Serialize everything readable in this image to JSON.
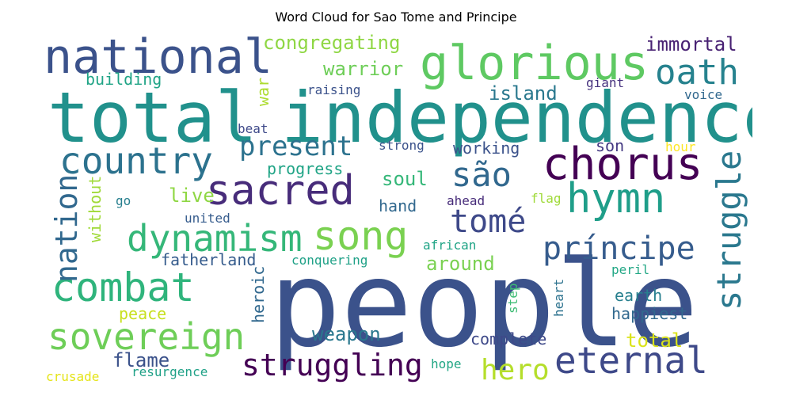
{
  "title": "Word Cloud for Sao Tome and Principe",
  "words": [
    {
      "text": "people",
      "color": "#3b528b"
    },
    {
      "text": "total",
      "color": "#21918c"
    },
    {
      "text": "independence",
      "color": "#21918c"
    },
    {
      "text": "national",
      "color": "#3b528b"
    },
    {
      "text": "glorious",
      "color": "#5ec962"
    },
    {
      "text": "chorus",
      "color": "#440154"
    },
    {
      "text": "sacred",
      "color": "#472c7a"
    },
    {
      "text": "hymn",
      "color": "#1f9e89"
    },
    {
      "text": "country",
      "color": "#2c728e"
    },
    {
      "text": "song",
      "color": "#7ad151"
    },
    {
      "text": "combat",
      "color": "#2fb47c"
    },
    {
      "text": "dynamism",
      "color": "#35b779"
    },
    {
      "text": "sovereign",
      "color": "#6ece58"
    },
    {
      "text": "eternal",
      "color": "#3e4989"
    },
    {
      "text": "struggling",
      "color": "#440154"
    },
    {
      "text": "struggle",
      "color": "#2a788e"
    },
    {
      "text": "nation",
      "color": "#31688e"
    },
    {
      "text": "são",
      "color": "#31688e"
    },
    {
      "text": "tomé",
      "color": "#3e4989"
    },
    {
      "text": "príncipe",
      "color": "#365c8d"
    },
    {
      "text": "oath",
      "color": "#26828e"
    },
    {
      "text": "present",
      "color": "#2c728e"
    },
    {
      "text": "hero",
      "color": "#b5de2b"
    },
    {
      "text": "congregating",
      "color": "#8fd744"
    },
    {
      "text": "warrior",
      "color": "#6ece58"
    },
    {
      "text": "immortal",
      "color": "#482173"
    },
    {
      "text": "building",
      "color": "#20a486"
    },
    {
      "text": "island",
      "color": "#2a788e"
    },
    {
      "text": "war",
      "color": "#addc30"
    },
    {
      "text": "raising",
      "color": "#3b528b"
    },
    {
      "text": "giant",
      "color": "#46327e"
    },
    {
      "text": "voice",
      "color": "#31688e"
    },
    {
      "text": "beat",
      "color": "#3e4989"
    },
    {
      "text": "strong",
      "color": "#3b528b"
    },
    {
      "text": "working",
      "color": "#3b528b"
    },
    {
      "text": "son",
      "color": "#443983"
    },
    {
      "text": "hour",
      "color": "#fde725"
    },
    {
      "text": "progress",
      "color": "#20a486"
    },
    {
      "text": "soul",
      "color": "#35b779"
    },
    {
      "text": "live",
      "color": "#8fd744"
    },
    {
      "text": "without",
      "color": "#a0da39"
    },
    {
      "text": "go",
      "color": "#277f8e"
    },
    {
      "text": "hand",
      "color": "#31688e"
    },
    {
      "text": "ahead",
      "color": "#472c7a"
    },
    {
      "text": "flag",
      "color": "#a0da39"
    },
    {
      "text": "united",
      "color": "#365c8d"
    },
    {
      "text": "african",
      "color": "#20a486"
    },
    {
      "text": "fatherland",
      "color": "#365c8d"
    },
    {
      "text": "conquering",
      "color": "#1fa187"
    },
    {
      "text": "around",
      "color": "#7ad151"
    },
    {
      "text": "peril",
      "color": "#22a785"
    },
    {
      "text": "peace",
      "color": "#c8e020"
    },
    {
      "text": "heroic",
      "color": "#31688e"
    },
    {
      "text": "step",
      "color": "#3dbc74"
    },
    {
      "text": "heart",
      "color": "#2c728e"
    },
    {
      "text": "earth",
      "color": "#277f8e"
    },
    {
      "text": "happiest",
      "color": "#31688e"
    },
    {
      "text": "weapon",
      "color": "#2a788e"
    },
    {
      "text": "complete",
      "color": "#3e4989"
    },
    {
      "text": "total",
      "color": "#dae319"
    },
    {
      "text": "flame",
      "color": "#3b528b"
    },
    {
      "text": "resurgence",
      "color": "#1fa187"
    },
    {
      "text": "hope",
      "color": "#22a785"
    },
    {
      "text": "crusade",
      "color": "#e5e419"
    }
  ]
}
